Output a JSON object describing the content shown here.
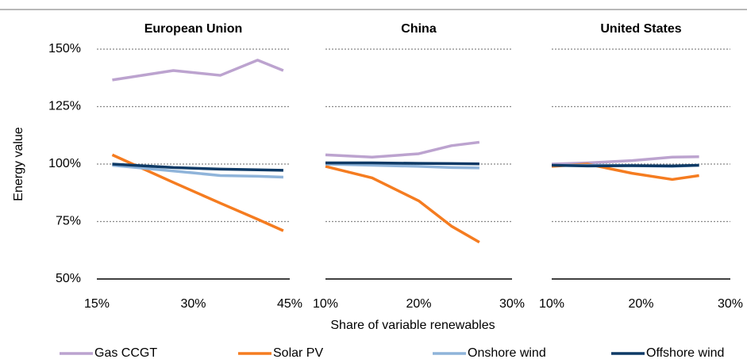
{
  "chart_data": [
    {
      "type": "line",
      "title": "European Union",
      "ylabel": "Energy value",
      "x": [
        17.4,
        26.9,
        34.2,
        40,
        44
      ],
      "xlim": [
        15,
        45
      ],
      "xticks": [
        {
          "value": 15,
          "label": "15%"
        },
        {
          "value": 30,
          "label": "30%"
        },
        {
          "value": 45,
          "label": "45%"
        }
      ],
      "ylim": [
        50,
        150
      ],
      "yticks": [
        {
          "value": 50,
          "label": "50%"
        },
        {
          "value": 75,
          "label": "75%"
        },
        {
          "value": 100,
          "label": "100%"
        },
        {
          "value": 125,
          "label": "125%"
        },
        {
          "value": 150,
          "label": "150%"
        }
      ],
      "grid": true,
      "series": [
        {
          "name": "Gas CCGT",
          "color": "#bca3cf",
          "values": [
            136.6,
            140.7,
            138.6,
            145.2,
            140.7
          ]
        },
        {
          "name": "Solar PV",
          "color": "#f57c20",
          "values": [
            104,
            92,
            83,
            76,
            71
          ]
        },
        {
          "name": "Onshore wind",
          "color": "#8fb4da",
          "values": [
            99.5,
            97,
            95,
            94.7,
            94.3
          ]
        },
        {
          "name": "Offshore wind",
          "color": "#0e3a66",
          "values": [
            100,
            98.5,
            97.8,
            97.5,
            97.3
          ]
        }
      ]
    },
    {
      "type": "line",
      "title": "China",
      "xlabel": "Share of variable renewables",
      "x": [
        10,
        15,
        20,
        23.5,
        26.5
      ],
      "xlim": [
        10,
        30
      ],
      "xticks": [
        {
          "value": 10,
          "label": "10%"
        },
        {
          "value": 20,
          "label": "20%"
        },
        {
          "value": 30,
          "label": "30%"
        }
      ],
      "ylim": [
        50,
        150
      ],
      "yticks": [
        50,
        75,
        100,
        125,
        150
      ],
      "grid": true,
      "series": [
        {
          "name": "Gas CCGT",
          "color": "#bca3cf",
          "values": [
            104,
            103,
            104.5,
            108,
            109.5
          ]
        },
        {
          "name": "Solar PV",
          "color": "#f57c20",
          "values": [
            99,
            94,
            84,
            73,
            66
          ]
        },
        {
          "name": "Onshore wind",
          "color": "#8fb4da",
          "values": [
            100,
            99.5,
            99,
            98.5,
            98.3
          ]
        },
        {
          "name": "Offshore wind",
          "color": "#0e3a66",
          "values": [
            100.5,
            100.5,
            100.3,
            100.2,
            100.1
          ]
        }
      ]
    },
    {
      "type": "line",
      "title": "United States",
      "x": [
        10,
        14,
        19,
        23.5,
        26.5
      ],
      "xlim": [
        10,
        30
      ],
      "xticks": [
        {
          "value": 10,
          "label": "10%"
        },
        {
          "value": 20,
          "label": "20%"
        },
        {
          "value": 30,
          "label": "30%"
        }
      ],
      "ylim": [
        50,
        150
      ],
      "yticks": [
        50,
        75,
        100,
        125,
        150
      ],
      "grid": true,
      "series": [
        {
          "name": "Gas CCGT",
          "color": "#bca3cf",
          "values": [
            100,
            100.5,
            101.5,
            103,
            103.2
          ]
        },
        {
          "name": "Solar PV",
          "color": "#f57c20",
          "values": [
            99,
            100,
            96,
            93.3,
            95
          ]
        },
        {
          "name": "Onshore wind",
          "color": "#8fb4da",
          "values": [
            99.5,
            99.5,
            99.3,
            99,
            99.5
          ]
        },
        {
          "name": "Offshore wind",
          "color": "#0e3a66",
          "values": [
            99.5,
            99.2,
            99.3,
            99.2,
            99.5
          ]
        }
      ]
    }
  ]
}
